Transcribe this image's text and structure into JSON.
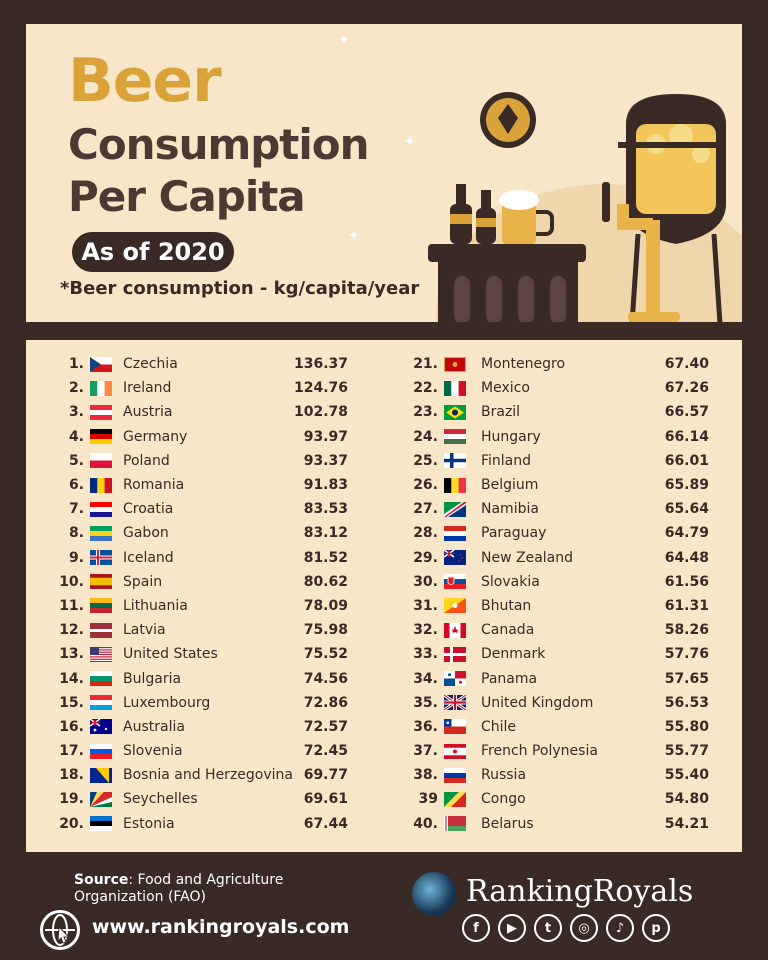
{
  "header": {
    "title_word": "Beer",
    "title_line2": "Consumption",
    "title_line3": "Per Capita",
    "date_label": "As of 2020",
    "unit_note": "*Beer consumption - kg/capita/year"
  },
  "colors": {
    "accent": "#d9a33a",
    "dark": "#3a2a26",
    "panel": "#f7e6c8"
  },
  "rankings_left": [
    {
      "rank": "1.",
      "country": "Czechia",
      "value": "136.37",
      "flag": "czechia"
    },
    {
      "rank": "2.",
      "country": "Ireland",
      "value": "124.76",
      "flag": "ireland"
    },
    {
      "rank": "3.",
      "country": "Austria",
      "value": "102.78",
      "flag": "austria"
    },
    {
      "rank": "4.",
      "country": "Germany",
      "value": "93.97",
      "flag": "germany"
    },
    {
      "rank": "5.",
      "country": "Poland",
      "value": "93.37",
      "flag": "poland"
    },
    {
      "rank": "6.",
      "country": "Romania",
      "value": "91.83",
      "flag": "romania"
    },
    {
      "rank": "7.",
      "country": "Croatia",
      "value": "83.53",
      "flag": "croatia"
    },
    {
      "rank": "8.",
      "country": "Gabon",
      "value": "83.12",
      "flag": "gabon"
    },
    {
      "rank": "9.",
      "country": "Iceland",
      "value": "81.52",
      "flag": "iceland"
    },
    {
      "rank": "10.",
      "country": "Spain",
      "value": "80.62",
      "flag": "spain"
    },
    {
      "rank": "11.",
      "country": "Lithuania",
      "value": "78.09",
      "flag": "lithuania"
    },
    {
      "rank": "12.",
      "country": "Latvia",
      "value": "75.98",
      "flag": "latvia"
    },
    {
      "rank": "13.",
      "country": "United States",
      "value": "75.52",
      "flag": "usa"
    },
    {
      "rank": "14.",
      "country": "Bulgaria",
      "value": "74.56",
      "flag": "bulgaria"
    },
    {
      "rank": "15.",
      "country": "Luxembourg",
      "value": "72.86",
      "flag": "luxembourg"
    },
    {
      "rank": "16.",
      "country": "Australia",
      "value": "72.57",
      "flag": "australia"
    },
    {
      "rank": "17.",
      "country": "Slovenia",
      "value": "72.45",
      "flag": "slovenia"
    },
    {
      "rank": "18.",
      "country": "Bosnia and Herzegovina",
      "value": "69.77",
      "flag": "bosnia"
    },
    {
      "rank": "19.",
      "country": "Seychelles",
      "value": "69.61",
      "flag": "seychelles"
    },
    {
      "rank": "20.",
      "country": "Estonia",
      "value": "67.44",
      "flag": "estonia"
    }
  ],
  "rankings_right": [
    {
      "rank": "21.",
      "country": "Montenegro",
      "value": "67.40",
      "flag": "montenegro"
    },
    {
      "rank": "22.",
      "country": "Mexico",
      "value": "67.26",
      "flag": "mexico"
    },
    {
      "rank": "23.",
      "country": "Brazil",
      "value": "66.57",
      "flag": "brazil"
    },
    {
      "rank": "24.",
      "country": "Hungary",
      "value": "66.14",
      "flag": "hungary"
    },
    {
      "rank": "25.",
      "country": "Finland",
      "value": "66.01",
      "flag": "finland"
    },
    {
      "rank": "26.",
      "country": "Belgium",
      "value": "65.89",
      "flag": "belgium"
    },
    {
      "rank": "27.",
      "country": "Namibia",
      "value": "65.64",
      "flag": "namibia"
    },
    {
      "rank": "28.",
      "country": "Paraguay",
      "value": "64.79",
      "flag": "paraguay"
    },
    {
      "rank": "29.",
      "country": "New Zealand",
      "value": "64.48",
      "flag": "newzealand"
    },
    {
      "rank": "30.",
      "country": "Slovakia",
      "value": "61.56",
      "flag": "slovakia"
    },
    {
      "rank": "31.",
      "country": "Bhutan",
      "value": "61.31",
      "flag": "bhutan"
    },
    {
      "rank": "32.",
      "country": "Canada",
      "value": "58.26",
      "flag": "canada"
    },
    {
      "rank": "33.",
      "country": "Denmark",
      "value": "57.76",
      "flag": "denmark"
    },
    {
      "rank": "34.",
      "country": "Panama",
      "value": "57.65",
      "flag": "panama"
    },
    {
      "rank": "35.",
      "country": "United Kingdom",
      "value": "56.53",
      "flag": "uk"
    },
    {
      "rank": "36.",
      "country": "Chile",
      "value": "55.80",
      "flag": "chile"
    },
    {
      "rank": "37.",
      "country": "French Polynesia",
      "value": "55.77",
      "flag": "frenchpolynesia"
    },
    {
      "rank": "38.",
      "country": "Russia",
      "value": "55.40",
      "flag": "russia"
    },
    {
      "rank": "39",
      "country": "Congo",
      "value": "54.80",
      "flag": "congo"
    },
    {
      "rank": "40.",
      "country": "Belarus",
      "value": "54.21",
      "flag": "belarus"
    }
  ],
  "footer": {
    "source_label": "Source",
    "source_text": ": Food and Agriculture Organization (FAO)",
    "website": "www.rankingroyals.com",
    "brand": "RankingRoyals",
    "socials": [
      "f",
      "▶",
      "t",
      "◎",
      "♪",
      "p"
    ]
  }
}
